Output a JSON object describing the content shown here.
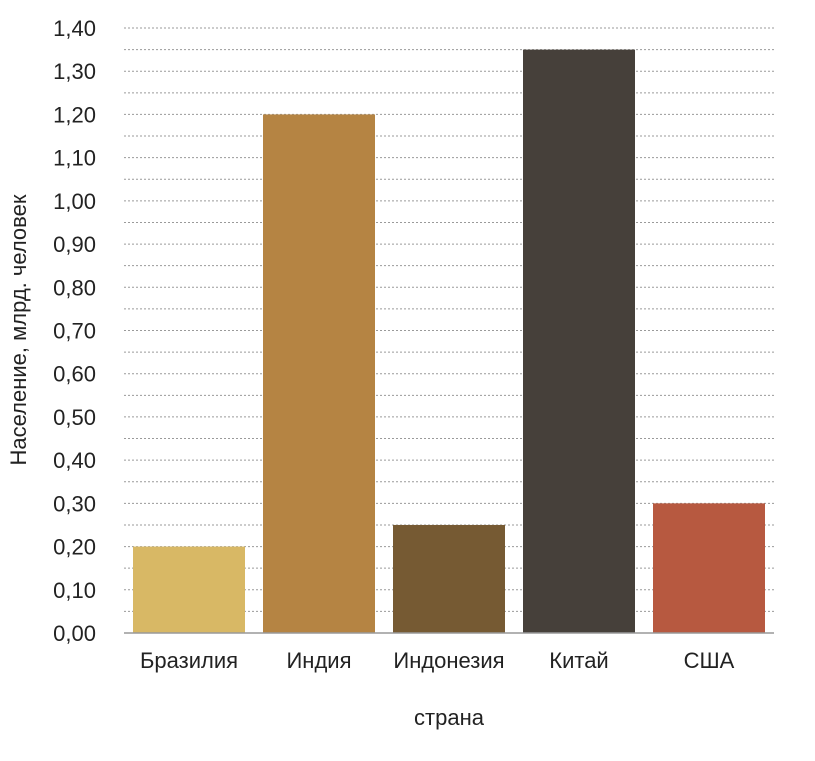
{
  "chart_data": {
    "type": "bar",
    "title": "",
    "xlabel": "страна",
    "ylabel": "Население, млрд. человек",
    "categories": [
      "Бразилия",
      "Индия",
      "Индонезия",
      "Китай",
      "США"
    ],
    "values": [
      0.2,
      1.2,
      0.25,
      1.35,
      0.3
    ],
    "bar_colors": [
      "#D8B865",
      "#B58443",
      "#765A33",
      "#46403A",
      "#B75940"
    ],
    "ylim": [
      0,
      1.4
    ],
    "yticks": [
      "0,00",
      "0,10",
      "0,20",
      "0,30",
      "0,40",
      "0,50",
      "0,60",
      "0,70",
      "0,80",
      "0,90",
      "1,00",
      "1,10",
      "1,20",
      "1,30",
      "1,40"
    ],
    "grid": true,
    "grid_style": "dotted",
    "legend": "none"
  }
}
